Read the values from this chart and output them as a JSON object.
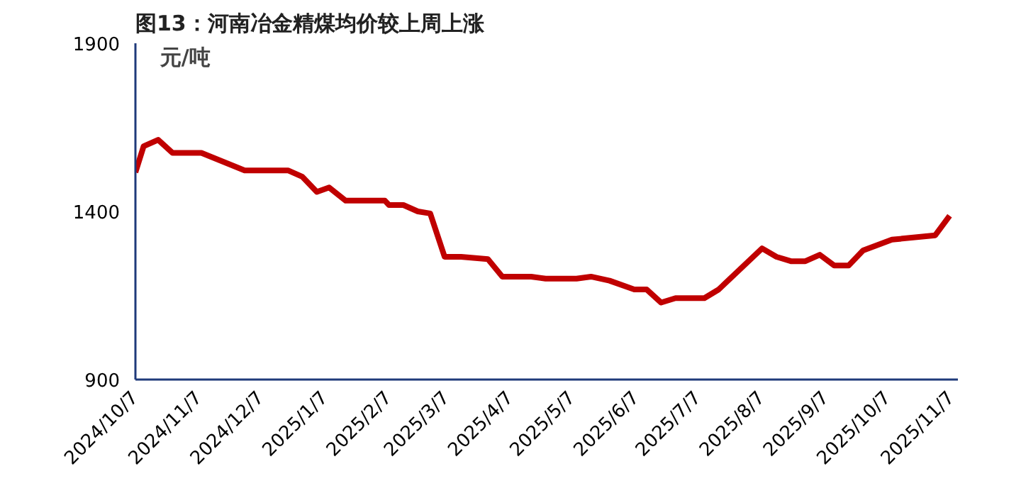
{
  "chart_data": {
    "type": "line",
    "title": "图13：河南冶金精煤均价较上周上涨",
    "ylabel": "元/吨",
    "x": [
      "2024-10-07",
      "2024-10-11",
      "2024-10-18",
      "2024-10-25",
      "2024-11-08",
      "2024-11-29",
      "2024-12-20",
      "2024-12-27",
      "2025-01-03",
      "2025-01-09",
      "2025-01-17",
      "2025-02-05",
      "2025-02-07",
      "2025-02-14",
      "2025-02-21",
      "2025-02-27",
      "2025-03-06",
      "2025-03-14",
      "2025-03-27",
      "2025-04-03",
      "2025-04-17",
      "2025-04-24",
      "2025-05-09",
      "2025-05-16",
      "2025-05-25",
      "2025-06-06",
      "2025-06-12",
      "2025-06-19",
      "2025-06-26",
      "2025-07-10",
      "2025-07-17",
      "2025-08-07",
      "2025-08-14",
      "2025-08-21",
      "2025-08-28",
      "2025-09-04",
      "2025-09-11",
      "2025-09-18",
      "2025-09-25",
      "2025-10-09",
      "2025-10-30",
      "2025-11-06"
    ],
    "series": [
      {
        "color": "#c00000",
        "values": [
          1516,
          1594,
          1613,
          1574,
          1574,
          1522,
          1522,
          1503,
          1458,
          1471,
          1432,
          1432,
          1419,
          1419,
          1400,
          1394,
          1265,
          1265,
          1258,
          1206,
          1206,
          1200,
          1200,
          1206,
          1194,
          1168,
          1168,
          1129,
          1142,
          1142,
          1168,
          1290,
          1265,
          1252,
          1252,
          1271,
          1239,
          1239,
          1284,
          1316,
          1329,
          1387
        ]
      }
    ],
    "xlim": [
      "2024-10-07",
      "2025-11-10"
    ],
    "xticks": [
      {
        "value": "2024-10-07",
        "label": "2024/10/7"
      },
      {
        "value": "2024-11-07",
        "label": "2024/11/7"
      },
      {
        "value": "2024-12-07",
        "label": "2024/12/7"
      },
      {
        "value": "2025-01-07",
        "label": "2025/1/7"
      },
      {
        "value": "2025-02-07",
        "label": "2025/2/7"
      },
      {
        "value": "2025-03-07",
        "label": "2025/3/7"
      },
      {
        "value": "2025-04-07",
        "label": "2025/4/7"
      },
      {
        "value": "2025-05-07",
        "label": "2025/5/7"
      },
      {
        "value": "2025-06-07",
        "label": "2025/6/7"
      },
      {
        "value": "2025-07-07",
        "label": "2025/7/7"
      },
      {
        "value": "2025-08-07",
        "label": "2025/8/7"
      },
      {
        "value": "2025-09-07",
        "label": "2025/9/7"
      },
      {
        "value": "2025-10-07",
        "label": "2025/10/7"
      },
      {
        "value": "2025-11-07",
        "label": "2025/11/7"
      }
    ],
    "ylim": [
      900,
      1900
    ],
    "yticks": [
      900,
      1400,
      1900
    ],
    "grid": false,
    "marker": "none",
    "line_style": "solid"
  }
}
